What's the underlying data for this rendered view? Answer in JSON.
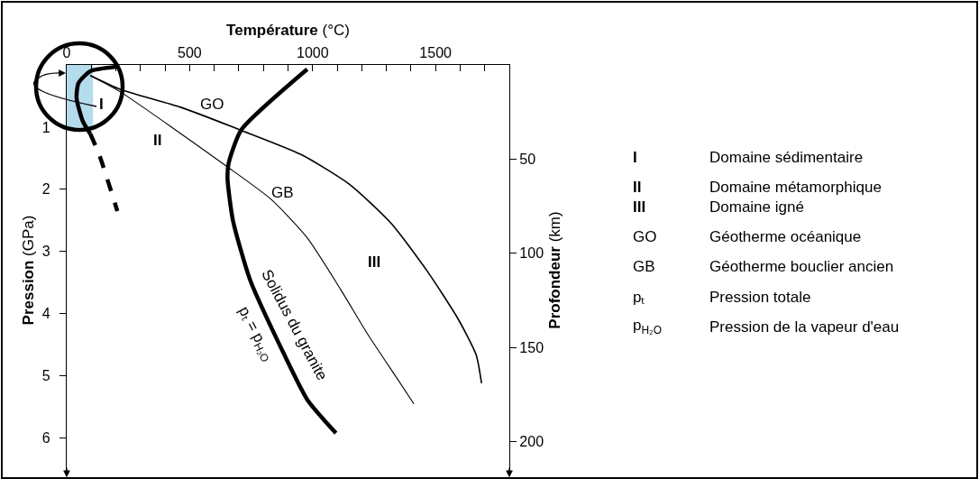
{
  "chart_data": {
    "type": "line",
    "xlabel": "Température (°C)",
    "ylabel": "Pression (GPa)",
    "y2label": "Profondeur (km)",
    "xlim": [
      0,
      1800
    ],
    "xticks": [
      0,
      {
        "value": 100,
        "label": null
      },
      {
        "value": 200,
        "label": null
      },
      {
        "value": 300,
        "label": null
      },
      {
        "value": 400,
        "label": null
      },
      500,
      {
        "value": 600,
        "label": null
      },
      {
        "value": 700,
        "label": null
      },
      {
        "value": 800,
        "label": null
      },
      {
        "value": 900,
        "label": null
      },
      1000,
      {
        "value": 1100,
        "label": null
      },
      {
        "value": 1200,
        "label": null
      },
      {
        "value": 1300,
        "label": null
      },
      {
        "value": 1400,
        "label": null
      },
      1500,
      {
        "value": 1600,
        "label": null
      },
      {
        "value": 1700,
        "label": null
      }
    ],
    "ylim": [
      6.6,
      0
    ],
    "yticks": [
      1,
      2,
      3,
      4,
      5,
      6
    ],
    "y2lim": [
      218,
      0
    ],
    "y2ticks": [
      50,
      100,
      150,
      200
    ],
    "marker": "none",
    "series": [
      {
        "type": "area",
        "color": "#b5dcec",
        "x": [
          0,
          107
        ],
        "values": [
          1.0,
          1.0
        ]
      },
      {
        "color": "#000000",
        "x": [
          978,
          709,
          658,
          654,
          676,
          746,
          868,
          978,
          1095
        ],
        "values": [
          0.07,
          1.05,
          1.59,
          1.83,
          2.5,
          3.46,
          4.52,
          5.38,
          5.92
        ]
      },
      {
        "color": "#000000",
        "x": [
          96,
          217,
          463,
          709,
          953,
          1150,
          1320,
          1467,
          1591,
          1665,
          1687
        ],
        "values": [
          0.17,
          0.39,
          0.68,
          1.05,
          1.44,
          1.92,
          2.55,
          3.32,
          4.08,
          4.66,
          5.12
        ]
      },
      {
        "color": "#000000",
        "x": [
          96,
          217,
          647,
          831,
          978,
          1114,
          1224,
          1345,
          1412
        ],
        "values": [
          0.17,
          0.43,
          1.62,
          2.16,
          2.78,
          3.61,
          4.33,
          5.05,
          5.45
        ]
      },
      {
        "color": "#000000",
        "x": [
          199,
          96,
          48,
          40,
          66,
          96
        ],
        "values": [
          0.03,
          0.1,
          0.29,
          0.53,
          0.91,
          1.11
        ]
      },
      {
        "color": "#000000",
        "line_style": "dashed",
        "x": [
          96,
          132,
          206
        ],
        "values": [
          1.11,
          1.44,
          2.35
        ]
      }
    ],
    "annotations": [
      "I",
      "II",
      "III",
      "GO",
      "GB",
      "Solidus du granite",
      "pₜ = p$_{H₂O}$",
      "I",
      "Domaine sédimentaire",
      "II",
      "Domaine métamorphique",
      "III",
      "Domaine igné",
      "GO",
      "Géotherme océanique",
      "GB",
      "Géotherme bouclier ancien",
      "pₜ",
      "Pression totale",
      "p$_{H₂O}$",
      "Pression de la vapeur d'eau"
    ]
  }
}
